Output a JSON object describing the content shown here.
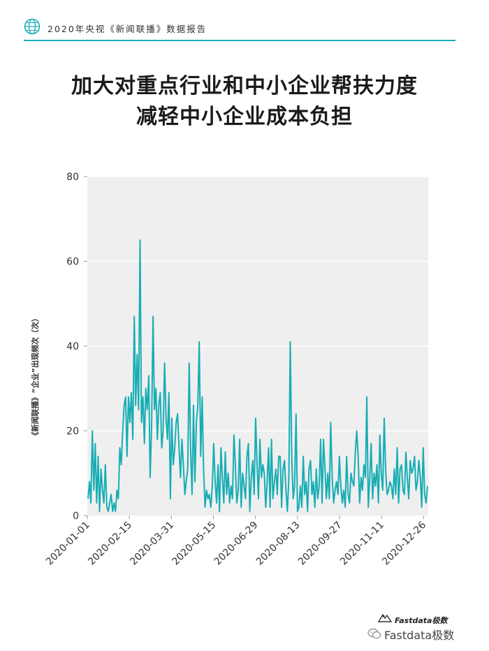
{
  "header": {
    "icon": "globe-icon",
    "report_title": "2020年央视《新闻联播》数据报告",
    "accent_color": "#18adb4"
  },
  "title_line1": "加大对重点行业和中小企业帮扶力度",
  "title_line2": "减轻中小企业成本负担",
  "footer": {
    "brand": "Fastdata极数",
    "wechat_text": "Fastdata极数"
  },
  "chart_data": {
    "type": "line",
    "title": "",
    "xlabel": "",
    "ylabel": "《新闻联播》“企业”出现频次（次）",
    "ylim": [
      0,
      80
    ],
    "yticks": [
      0,
      20,
      40,
      60,
      80
    ],
    "xticks": [
      "2020-01-01",
      "2020-02-15",
      "2020-03-31",
      "2020-05-15",
      "2020-06-29",
      "2020-08-13",
      "2020-09-27",
      "2020-11-11",
      "2020-12-26"
    ],
    "x_start": "2020-01-01",
    "x_end": "2020-12-31",
    "grid": true,
    "legend": "none",
    "line_color": "#18adb4",
    "background": "#efefef",
    "values": [
      4,
      8,
      3,
      20,
      6,
      17,
      3,
      14,
      1,
      11,
      6,
      3,
      12,
      2,
      1,
      3,
      5,
      1,
      3,
      1,
      6,
      4,
      16,
      12,
      20,
      26,
      28,
      14,
      28,
      22,
      29,
      18,
      47,
      26,
      38,
      25,
      65,
      22,
      28,
      17,
      30,
      25,
      33,
      9,
      21,
      47,
      25,
      30,
      18,
      26,
      29,
      16,
      20,
      36,
      23,
      18,
      29,
      4,
      23,
      12,
      16,
      22,
      24,
      16,
      9,
      18,
      12,
      5,
      8,
      11,
      36,
      16,
      5,
      26,
      8,
      22,
      26,
      41,
      14,
      28,
      11,
      2,
      6,
      4,
      5,
      2,
      7,
      17,
      8,
      3,
      12,
      1,
      16,
      9,
      3,
      15,
      5,
      10,
      3,
      7,
      4,
      19,
      12,
      3,
      6,
      18,
      2,
      10,
      7,
      4,
      14,
      17,
      1,
      9,
      13,
      5,
      23,
      12,
      4,
      18,
      9,
      12,
      10,
      2,
      8,
      16,
      2,
      18,
      4,
      8,
      11,
      5,
      14,
      14,
      2,
      11,
      13,
      6,
      1,
      9,
      41,
      14,
      4,
      7,
      24,
      1,
      2,
      7,
      2,
      14,
      5,
      8,
      1,
      11,
      13,
      5,
      8,
      2,
      11,
      4,
      7,
      18,
      3,
      18,
      11,
      4,
      10,
      4,
      22,
      9,
      3,
      6,
      8,
      5,
      14,
      7,
      3,
      6,
      2,
      14,
      5,
      3,
      10,
      8,
      7,
      15,
      20,
      14,
      3,
      9,
      6,
      12,
      9,
      28,
      2,
      9,
      17,
      4,
      10,
      7,
      12,
      3,
      19,
      10,
      6,
      23,
      11,
      5,
      6,
      8,
      7,
      4,
      11,
      5,
      16,
      3,
      11,
      12,
      6,
      5,
      15,
      9,
      4,
      13,
      10,
      11,
      14,
      6,
      8,
      13,
      9,
      2,
      16,
      5,
      3,
      7
    ]
  }
}
